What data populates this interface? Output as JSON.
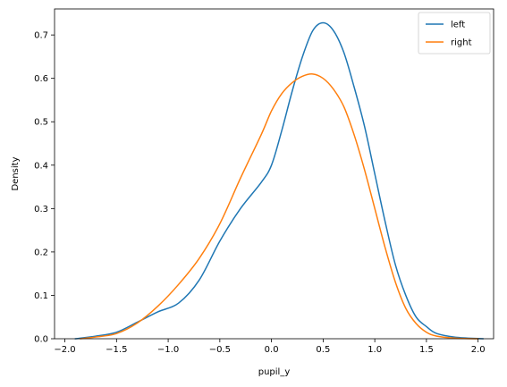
{
  "chart_data": {
    "type": "line",
    "title": "",
    "xlabel": "pupil_y",
    "ylabel": "Density",
    "xlim": [
      -2.1,
      2.15
    ],
    "ylim": [
      0,
      0.76
    ],
    "xticks": [
      -2.0,
      -1.5,
      -1.0,
      -0.5,
      0.0,
      0.5,
      1.0,
      1.5,
      2.0
    ],
    "xtick_labels": [
      "−2.0",
      "−1.5",
      "−1.0",
      "−0.5",
      "0.0",
      "0.5",
      "1.0",
      "1.5",
      "2.0"
    ],
    "yticks": [
      0.0,
      0.1,
      0.2,
      0.3,
      0.4,
      0.5,
      0.6,
      0.7
    ],
    "ytick_labels": [
      "0.0",
      "0.1",
      "0.2",
      "0.3",
      "0.4",
      "0.5",
      "0.6",
      "0.7"
    ],
    "grid": false,
    "legend": "top-right",
    "series": [
      {
        "name": "left",
        "color": "#1f77b4",
        "x": [
          -1.9,
          -1.7,
          -1.5,
          -1.3,
          -1.1,
          -0.9,
          -0.7,
          -0.5,
          -0.3,
          -0.1,
          0.0,
          0.1,
          0.2,
          0.3,
          0.4,
          0.5,
          0.6,
          0.7,
          0.8,
          0.9,
          1.0,
          1.1,
          1.2,
          1.3,
          1.4,
          1.5,
          1.6,
          1.8,
          2.05
        ],
        "y": [
          0.0,
          0.006,
          0.015,
          0.038,
          0.062,
          0.082,
          0.135,
          0.225,
          0.3,
          0.36,
          0.4,
          0.48,
          0.57,
          0.65,
          0.71,
          0.728,
          0.71,
          0.66,
          0.58,
          0.49,
          0.38,
          0.27,
          0.17,
          0.1,
          0.05,
          0.028,
          0.012,
          0.003,
          0.0
        ]
      },
      {
        "name": "right",
        "color": "#ff7f0e",
        "x": [
          -1.85,
          -1.7,
          -1.5,
          -1.3,
          -1.1,
          -0.9,
          -0.7,
          -0.5,
          -0.3,
          -0.1,
          0.0,
          0.1,
          0.2,
          0.3,
          0.4,
          0.5,
          0.6,
          0.7,
          0.8,
          0.9,
          1.0,
          1.1,
          1.2,
          1.3,
          1.4,
          1.5,
          1.6,
          1.8,
          2.0
        ],
        "y": [
          0.0,
          0.004,
          0.012,
          0.036,
          0.075,
          0.125,
          0.185,
          0.265,
          0.37,
          0.47,
          0.525,
          0.565,
          0.59,
          0.605,
          0.61,
          0.6,
          0.575,
          0.535,
          0.47,
          0.39,
          0.3,
          0.21,
          0.13,
          0.07,
          0.035,
          0.015,
          0.006,
          0.001,
          0.0
        ]
      }
    ]
  }
}
